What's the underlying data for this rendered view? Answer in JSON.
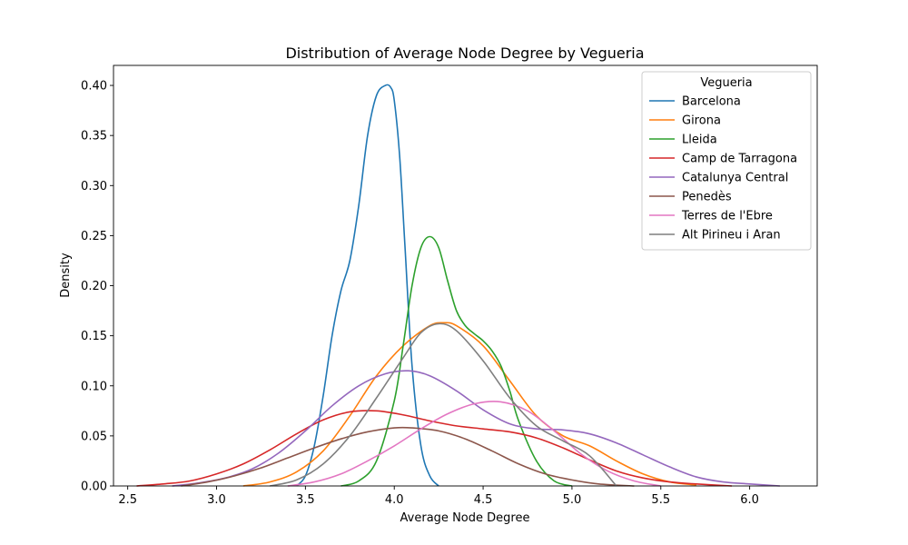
{
  "chart_data": {
    "type": "line",
    "title": "Distribution of Average Node Degree by Vegueria",
    "xlabel": "Average Node Degree",
    "ylabel": "Density",
    "xlim": [
      2.42,
      6.38
    ],
    "ylim": [
      0,
      0.42
    ],
    "xticks": [
      2.5,
      3.0,
      3.5,
      4.0,
      4.5,
      5.0,
      5.5,
      6.0
    ],
    "yticks": [
      0.0,
      0.05,
      0.1,
      0.15,
      0.2,
      0.25,
      0.3,
      0.35,
      0.4
    ],
    "xtick_labels": [
      "2.5",
      "3.0",
      "3.5",
      "4.0",
      "4.5",
      "5.0",
      "5.5",
      "6.0"
    ],
    "ytick_labels": [
      "0.00",
      "0.05",
      "0.10",
      "0.15",
      "0.20",
      "0.25",
      "0.30",
      "0.35",
      "0.40"
    ],
    "grid": false,
    "legend": {
      "title": "Vegueria",
      "placement": "top-right"
    },
    "series": [
      {
        "name": "Barcelona",
        "color": "#1f77b4",
        "x": [
          3.45,
          3.5,
          3.55,
          3.6,
          3.65,
          3.7,
          3.75,
          3.8,
          3.85,
          3.9,
          3.95,
          3.98,
          4.0,
          4.03,
          4.06,
          4.1,
          4.15,
          4.2,
          4.25
        ],
        "y": [
          0.0,
          0.01,
          0.04,
          0.09,
          0.15,
          0.195,
          0.225,
          0.28,
          0.35,
          0.39,
          0.4,
          0.398,
          0.385,
          0.33,
          0.24,
          0.12,
          0.04,
          0.01,
          0.0
        ]
      },
      {
        "name": "Girona",
        "color": "#ff7f0e",
        "x": [
          3.15,
          3.3,
          3.45,
          3.6,
          3.75,
          3.9,
          4.05,
          4.2,
          4.28,
          4.35,
          4.5,
          4.65,
          4.8,
          4.95,
          5.1,
          5.25,
          5.4,
          5.55,
          5.7
        ],
        "y": [
          0.0,
          0.004,
          0.014,
          0.035,
          0.07,
          0.11,
          0.14,
          0.16,
          0.163,
          0.16,
          0.14,
          0.105,
          0.07,
          0.05,
          0.04,
          0.025,
          0.012,
          0.004,
          0.001
        ]
      },
      {
        "name": "Lleida",
        "color": "#2ca02c",
        "x": [
          3.7,
          3.8,
          3.9,
          4.0,
          4.05,
          4.1,
          4.15,
          4.2,
          4.25,
          4.3,
          4.35,
          4.4,
          4.45,
          4.5,
          4.55,
          4.6,
          4.65,
          4.7,
          4.8,
          4.9,
          5.0
        ],
        "y": [
          0.0,
          0.005,
          0.025,
          0.085,
          0.14,
          0.2,
          0.238,
          0.249,
          0.238,
          0.205,
          0.175,
          0.16,
          0.152,
          0.145,
          0.135,
          0.12,
          0.095,
          0.065,
          0.025,
          0.005,
          0.0
        ]
      },
      {
        "name": "Camp de Tarragona",
        "color": "#d62728",
        "x": [
          2.55,
          2.7,
          2.85,
          3.0,
          3.15,
          3.3,
          3.45,
          3.6,
          3.75,
          3.9,
          4.05,
          4.2,
          4.35,
          4.5,
          4.65,
          4.8,
          4.95,
          5.1,
          5.25,
          5.4,
          5.55,
          5.7,
          5.9
        ],
        "y": [
          0.0,
          0.002,
          0.005,
          0.012,
          0.022,
          0.036,
          0.052,
          0.066,
          0.074,
          0.075,
          0.071,
          0.065,
          0.06,
          0.057,
          0.054,
          0.048,
          0.038,
          0.026,
          0.015,
          0.008,
          0.004,
          0.002,
          0.0
        ]
      },
      {
        "name": "Catalunya Central",
        "color": "#9467bd",
        "x": [
          2.75,
          2.9,
          3.05,
          3.2,
          3.35,
          3.5,
          3.65,
          3.8,
          3.95,
          4.08,
          4.2,
          4.35,
          4.5,
          4.65,
          4.8,
          4.95,
          5.1,
          5.25,
          5.4,
          5.55,
          5.7,
          5.85,
          6.0,
          6.17
        ],
        "y": [
          0.0,
          0.003,
          0.008,
          0.017,
          0.033,
          0.055,
          0.08,
          0.1,
          0.112,
          0.115,
          0.11,
          0.095,
          0.076,
          0.062,
          0.057,
          0.056,
          0.052,
          0.043,
          0.031,
          0.019,
          0.009,
          0.004,
          0.002,
          0.0
        ]
      },
      {
        "name": "Penedès",
        "color": "#8c564b",
        "x": [
          2.8,
          2.95,
          3.1,
          3.25,
          3.4,
          3.55,
          3.7,
          3.85,
          4.0,
          4.1,
          4.25,
          4.4,
          4.55,
          4.7,
          4.85,
          5.0,
          5.15,
          5.35
        ],
        "y": [
          0.0,
          0.004,
          0.01,
          0.018,
          0.028,
          0.038,
          0.047,
          0.054,
          0.058,
          0.058,
          0.055,
          0.047,
          0.035,
          0.022,
          0.012,
          0.006,
          0.002,
          0.0
        ]
      },
      {
        "name": "Terres de l'Ebre",
        "color": "#e377c2",
        "x": [
          3.4,
          3.55,
          3.7,
          3.85,
          4.0,
          4.15,
          4.3,
          4.45,
          4.6,
          4.75,
          4.9,
          5.05,
          5.2,
          5.35,
          5.5
        ],
        "y": [
          0.0,
          0.004,
          0.012,
          0.025,
          0.04,
          0.057,
          0.072,
          0.082,
          0.084,
          0.075,
          0.055,
          0.032,
          0.015,
          0.005,
          0.0
        ]
      },
      {
        "name": "Alt Pirineu i Aran",
        "color": "#7f7f7f",
        "x": [
          3.3,
          3.45,
          3.6,
          3.75,
          3.9,
          4.05,
          4.15,
          4.25,
          4.35,
          4.5,
          4.65,
          4.8,
          4.95,
          5.1,
          5.25
        ],
        "y": [
          0.0,
          0.006,
          0.022,
          0.05,
          0.088,
          0.128,
          0.153,
          0.162,
          0.155,
          0.125,
          0.088,
          0.06,
          0.045,
          0.03,
          0.0
        ]
      }
    ]
  }
}
